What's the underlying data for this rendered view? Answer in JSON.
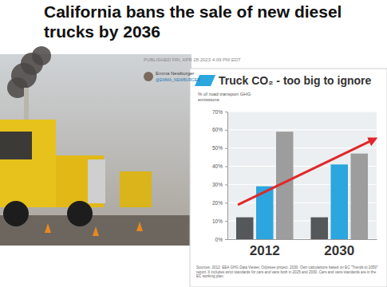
{
  "article": {
    "headline": "California bans the sale of new diesel trucks by 2036",
    "published": "PUBLISHED FRI, APR 28 2023 4:09 PM EDT",
    "author": "Emma Newburger",
    "handle": "@EMMA_NEWBURGER"
  },
  "chart_data": {
    "type": "bar",
    "title": "Truck CO₂ - too big to ignore",
    "y_label": "% of road transport GHG emissions",
    "categories": [
      "2012",
      "2030"
    ],
    "series": [
      {
        "color": "#54585a",
        "values": [
          12,
          12
        ]
      },
      {
        "color": "#2ba6de",
        "values": [
          29,
          41
        ]
      },
      {
        "color": "#9d9d9d",
        "values": [
          59,
          47
        ]
      }
    ],
    "ylim": [
      0,
      70
    ],
    "yticks": [
      {
        "value": 0,
        "label": "0%"
      },
      {
        "value": 10,
        "label": "10%"
      },
      {
        "value": 20,
        "label": "20%"
      },
      {
        "value": 30,
        "label": "30%"
      },
      {
        "value": 40,
        "label": "40%"
      },
      {
        "value": 50,
        "label": "50%"
      },
      {
        "value": 60,
        "label": "60%"
      },
      {
        "value": 70,
        "label": "70%"
      }
    ],
    "grid": true,
    "source": "Sources: 2012: EEA GHG Data Viewer, Odyssee project. 2030: Own calculations based on EC \"Trends to 2050\" report. It includes strict standards for cars and vans both in 2025 and 2030. Cars and vans standards are in the EC working plan."
  }
}
